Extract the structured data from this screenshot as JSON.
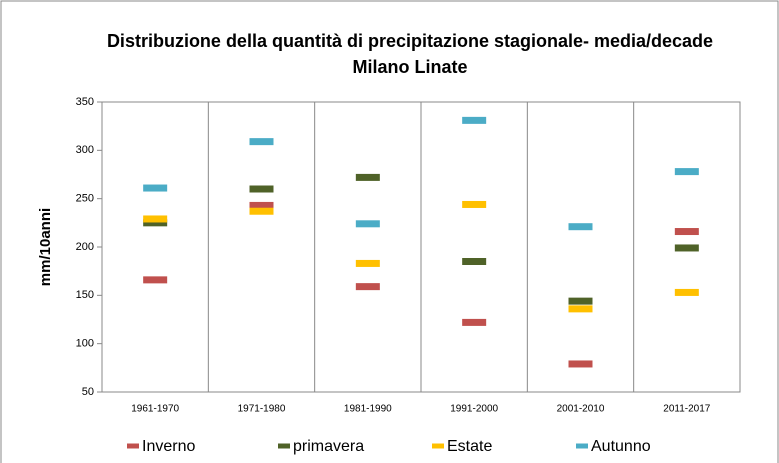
{
  "chart_data": {
    "type": "dash",
    "title": "Distribuzione della quantità di precipitazione stagionale- media/decade",
    "subtitle": "Milano Linate",
    "y_label": "mm/10anni",
    "categories": [
      "1961-1970",
      "1971-1980",
      "1981-1990",
      "1991-2000",
      "2001-2010",
      "2011-2017"
    ],
    "series": [
      {
        "name": "Inverno",
        "color": "#c0504d",
        "values": [
          166,
          243,
          159,
          122,
          79,
          216
        ]
      },
      {
        "name": "primavera",
        "color": "#4f6228",
        "values": [
          225,
          260,
          272,
          185,
          144,
          199
        ]
      },
      {
        "name": "Estate",
        "color": "#ffc000",
        "values": [
          229,
          237,
          183,
          244,
          136,
          153
        ]
      },
      {
        "name": "Autunno",
        "color": "#4bacc6",
        "values": [
          261,
          309,
          224,
          331,
          221,
          278
        ]
      }
    ],
    "ylim": [
      50,
      350
    ],
    "yticks": [
      50,
      100,
      150,
      200,
      250,
      300,
      350
    ],
    "legend": "bottom"
  }
}
